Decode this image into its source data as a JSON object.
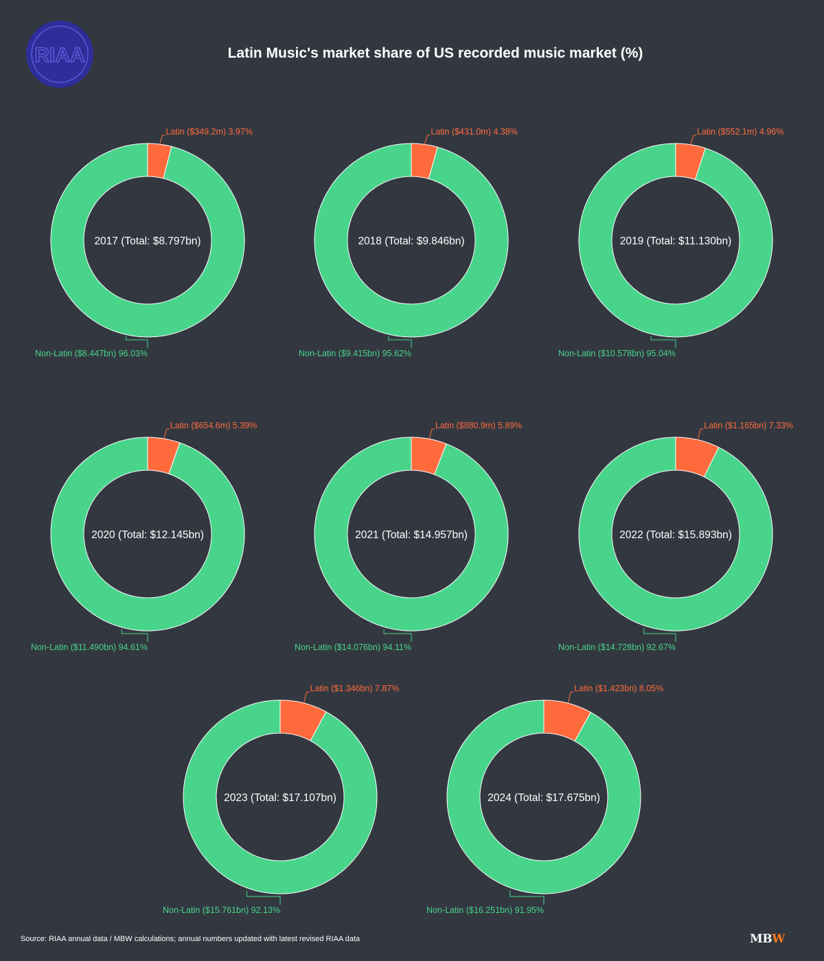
{
  "title": "Latin Music's market share of US recorded music market (%)",
  "logo_text": "RIAA",
  "source": "Source: RIAA annual data / MBW calculations; annual numbers updated with latest revised RIAA data",
  "brand": {
    "mb": "MB",
    "w": "W"
  },
  "colors": {
    "background": "#333840",
    "latin": "#ff6a3d",
    "non_latin": "#48d48b",
    "logo": "#2e2d99",
    "brand_accent": "#ff7a1a"
  },
  "chart_data": [
    {
      "type": "pie",
      "center_label": "2017 (Total: $8.797bn)",
      "slices": [
        {
          "name": "Latin",
          "value": 3.97,
          "label": "Latin ($349.2m) 3.97%"
        },
        {
          "name": "Non-Latin",
          "value": 96.03,
          "label": "Non-Latin ($8.447bn) 96.03%"
        }
      ]
    },
    {
      "type": "pie",
      "center_label": "2018 (Total: $9.846bn)",
      "slices": [
        {
          "name": "Latin",
          "value": 4.38,
          "label": "Latin ($431.0m) 4.38%"
        },
        {
          "name": "Non-Latin",
          "value": 95.62,
          "label": "Non-Latin ($9.415bn) 95.62%"
        }
      ]
    },
    {
      "type": "pie",
      "center_label": "2019 (Total: $11.130bn)",
      "slices": [
        {
          "name": "Latin",
          "value": 4.96,
          "label": "Latin ($552.1m) 4.96%"
        },
        {
          "name": "Non-Latin",
          "value": 95.04,
          "label": "Non-Latin ($10.578bn) 95.04%"
        }
      ]
    },
    {
      "type": "pie",
      "center_label": "2020 (Total: $12.145bn)",
      "slices": [
        {
          "name": "Latin",
          "value": 5.39,
          "label": "Latin ($654.6m) 5.39%"
        },
        {
          "name": "Non-Latin",
          "value": 94.61,
          "label": "Non-Latin ($11.490bn) 94.61%"
        }
      ]
    },
    {
      "type": "pie",
      "center_label": "2021 (Total: $14.957bn)",
      "slices": [
        {
          "name": "Latin",
          "value": 5.89,
          "label": "Latin ($880.9m) 5.89%"
        },
        {
          "name": "Non-Latin",
          "value": 94.11,
          "label": "Non-Latin ($14.076bn) 94.11%"
        }
      ]
    },
    {
      "type": "pie",
      "center_label": "2022 (Total: $15.893bn)",
      "slices": [
        {
          "name": "Latin",
          "value": 7.33,
          "label": "Latin ($1.165bn) 7.33%"
        },
        {
          "name": "Non-Latin",
          "value": 92.67,
          "label": "Non-Latin ($14.728bn) 92.67%"
        }
      ]
    },
    {
      "type": "pie",
      "center_label": "2023 (Total: $17.107bn)",
      "slices": [
        {
          "name": "Latin",
          "value": 7.87,
          "label": "Latin ($1.346bn) 7.87%"
        },
        {
          "name": "Non-Latin",
          "value": 92.13,
          "label": "Non-Latin ($15.761bn) 92.13%"
        }
      ]
    },
    {
      "type": "pie",
      "center_label": "2024 (Total: $17.675bn)",
      "slices": [
        {
          "name": "Latin",
          "value": 8.05,
          "label": "Latin ($1.423bn) 8.05%"
        },
        {
          "name": "Non-Latin",
          "value": 91.95,
          "label": "Non-Latin ($16.251bn) 91.95%"
        }
      ]
    }
  ]
}
